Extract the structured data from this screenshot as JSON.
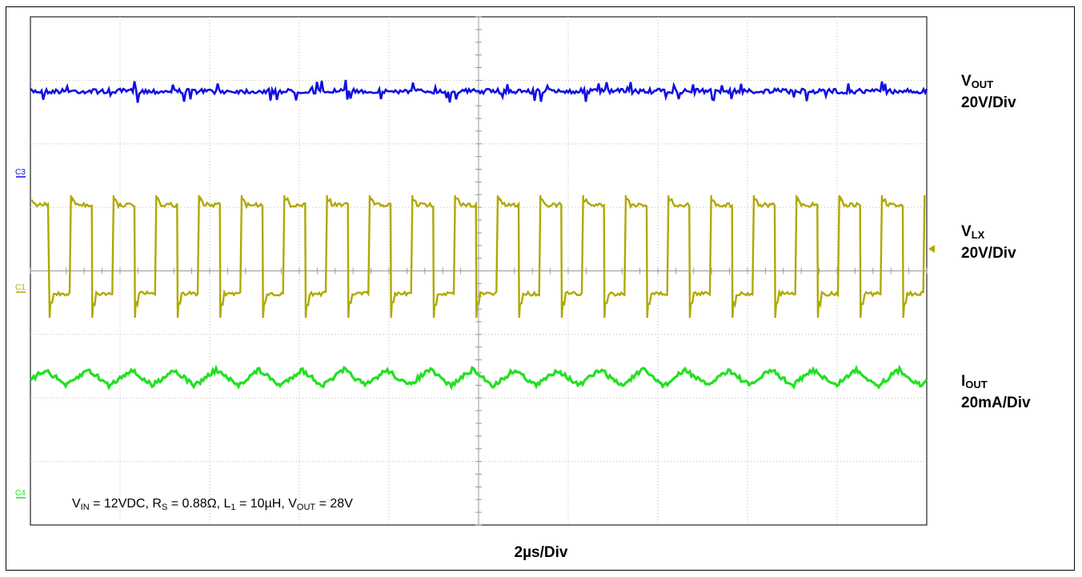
{
  "chart_data": {
    "type": "line",
    "timebase": "2µs/Div",
    "horizontal_divisions": 10,
    "vertical_divisions": 8,
    "grid": true,
    "conditions": [
      {
        "sym": "V",
        "sub": "IN",
        "rest": " = 12VDC, "
      },
      {
        "sym": "R",
        "sub": "S",
        "rest": " = 0.88Ω, "
      },
      {
        "sym": "L",
        "sub": "1",
        "rest": " = 10µH, "
      },
      {
        "sym": "V",
        "sub": "OUT",
        "rest": " = 28V"
      }
    ],
    "series": [
      {
        "name_main": "V",
        "name_sub": "OUT",
        "scale": "20V/Div",
        "channel": "C3",
        "color": "#1010e0",
        "shape": "dc_with_spikes"
      },
      {
        "name_main": "V",
        "name_sub": "LX",
        "scale": "20V/Div",
        "channel": "C1",
        "color": "#b0a800",
        "shape": "square_wave",
        "cycles": 21
      },
      {
        "name_main": "I",
        "name_sub": "OUT",
        "scale": "20mA/Div",
        "channel": "C4",
        "color": "#22e022",
        "shape": "triangle_ripple",
        "cycles": 21
      }
    ]
  }
}
